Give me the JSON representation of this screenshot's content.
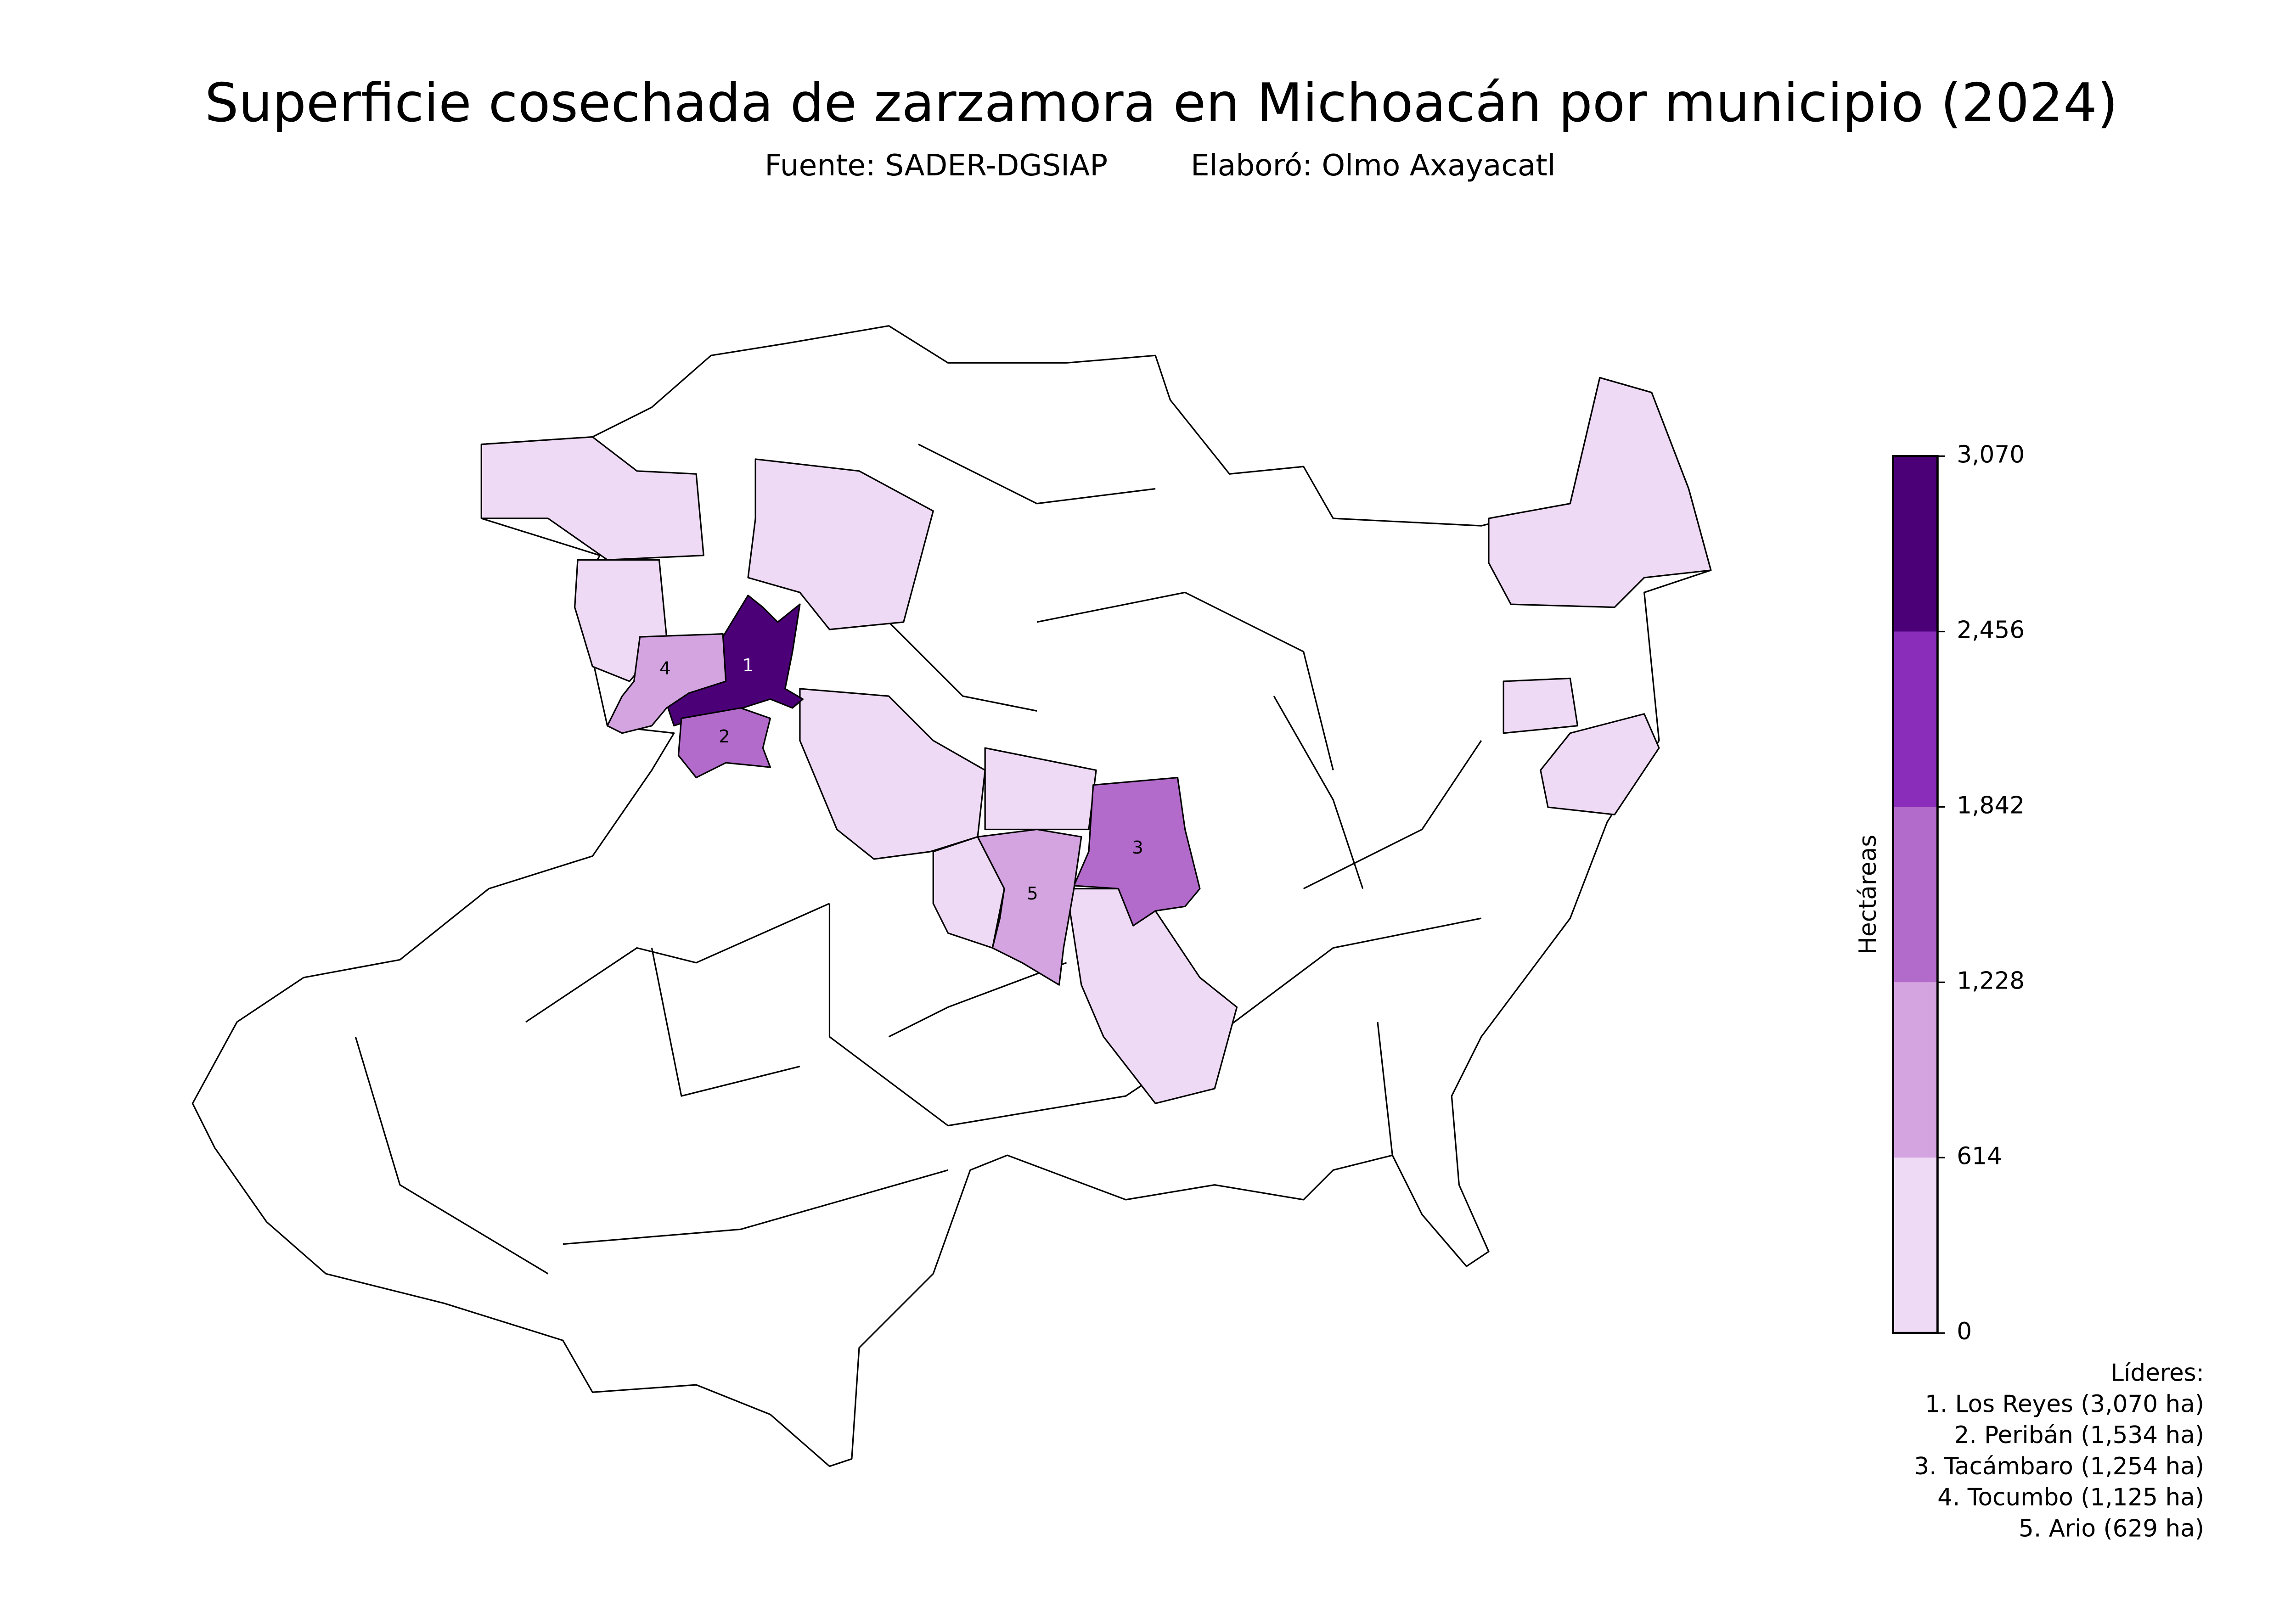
{
  "chart_data": {
    "type": "choropleth",
    "title": "Superficie cosechada de zarzamora en Michoacán por municipio (2024)",
    "source": "Fuente: SADER-DGSIAP",
    "author": "Elaboró: Olmo Axayacatl",
    "colorbar": {
      "label": "Hectáreas",
      "lim": [
        0,
        3070
      ],
      "ticks": [
        0,
        614,
        {
          "value": 1228,
          "label": "1,228"
        },
        {
          "value": 1842,
          "label": "1,842"
        },
        {
          "value": 2456,
          "label": "2,456"
        },
        {
          "value": 3070,
          "label": "3,070"
        }
      ],
      "colors": [
        "#efdaf5",
        "#d3a4e0",
        "#b36bcb",
        "#8a2dba",
        "#4b0078"
      ]
    },
    "leaders": {
      "title": "Líderes:",
      "items": [
        {
          "label": "1. Los Reyes (3,070 ha)",
          "map_label": "1",
          "value": 3070
        },
        {
          "label": "2. Peribán (1,534 ha)",
          "map_label": "2",
          "value": 1534
        },
        {
          "label": "3. Tacámbaro (1,254 ha)",
          "map_label": "3",
          "value": 1254
        },
        {
          "label": "4. Tocumbo (1,125 ha)",
          "map_label": "4",
          "value": 1125
        },
        {
          "label": "5. Ario (629 ha)",
          "map_label": "5",
          "value": 629
        }
      ]
    }
  }
}
